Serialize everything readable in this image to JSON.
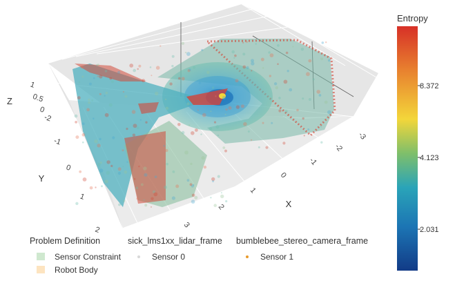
{
  "chart_data": {
    "type": "scatter",
    "title": "",
    "axes": {
      "x": {
        "label": "X",
        "ticks": [
          "-3",
          "-2",
          "-1",
          "0",
          "1",
          "2",
          "3"
        ]
      },
      "y": {
        "label": "Y",
        "ticks": [
          "-2",
          "-1",
          "0",
          "1",
          "2"
        ]
      },
      "z": {
        "label": "Z",
        "ticks": [
          "0",
          "0.5",
          "1"
        ]
      }
    },
    "colorbar": {
      "title": "Entropy",
      "ticks": [
        "8.372",
        "4.123",
        "2.031"
      ],
      "colors": [
        "#d73027",
        "#e8812f",
        "#f3d63a",
        "#7fbf6a",
        "#2aa4b8",
        "#1c75b4",
        "#123b87"
      ]
    },
    "legend": {
      "groups": [
        {
          "title": "Problem Definition",
          "items": [
            {
              "label": "Sensor Constraint",
              "color": "#cfe8cf"
            },
            {
              "label": "Robot Body",
              "color": "#fde4c0"
            }
          ]
        },
        {
          "title": "sick_lms1xx_lidar_frame",
          "items": [
            {
              "label": "Sensor 0",
              "color": "#d8d8d8"
            }
          ]
        },
        {
          "title": "bumblebee_stereo_camera_frame",
          "items": [
            {
              "label": "Sensor 1",
              "color": "#e89a2c"
            }
          ]
        }
      ]
    }
  }
}
